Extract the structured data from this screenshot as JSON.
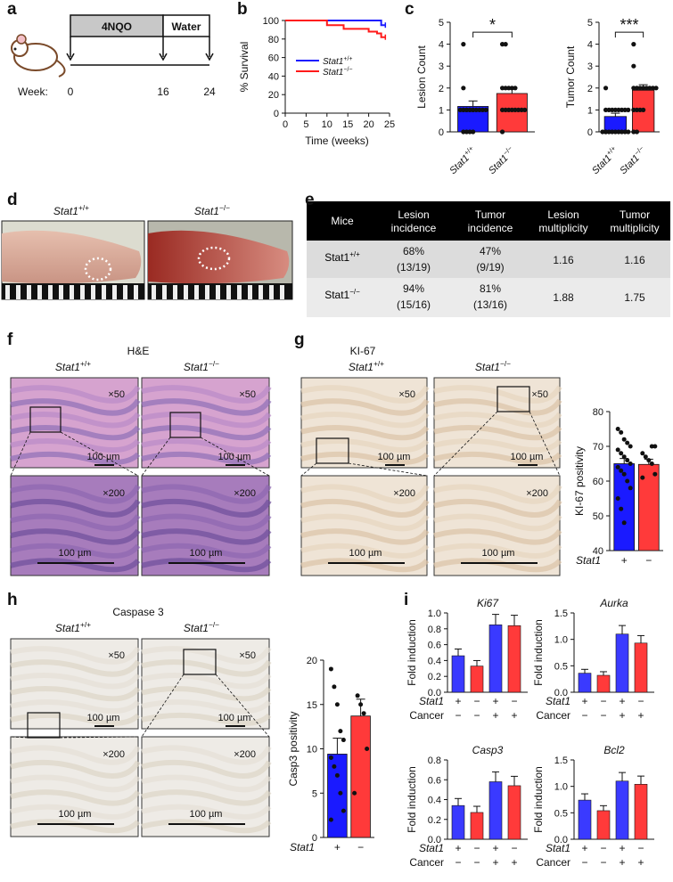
{
  "panels": {
    "a": "a",
    "b": "b",
    "c": "c",
    "d": "d",
    "e": "e",
    "f": "f",
    "g": "g",
    "h": "h",
    "i": "i"
  },
  "panel_a": {
    "treat1": "4NQO",
    "treat2": "Water",
    "week_label": "Week:",
    "weeks": [
      "0",
      "16",
      "24"
    ]
  },
  "panel_b": {
    "chart_data": {
      "type": "line",
      "xlabel": "Time (weeks)",
      "ylabel": "% Survival",
      "xlim": [
        0,
        25
      ],
      "ylim": [
        0,
        100
      ],
      "xticks": [
        "0",
        "5",
        "10",
        "15",
        "20",
        "25"
      ],
      "yticks": [
        "0",
        "20",
        "40",
        "60",
        "80",
        "100"
      ],
      "series": [
        {
          "name": "Stat1+/+",
          "color": "#1a1aff",
          "x": [
            0,
            23,
            23,
            24
          ],
          "y": [
            100,
            100,
            95,
            95
          ]
        },
        {
          "name": "Stat1−/−",
          "color": "#ff1a1a",
          "x": [
            0,
            10,
            10,
            14,
            14,
            20,
            20,
            22,
            22,
            23,
            23,
            24
          ],
          "y": [
            100,
            100,
            95,
            95,
            91,
            91,
            88,
            88,
            86,
            86,
            82,
            82
          ]
        }
      ]
    },
    "legend": [
      {
        "base": "Stat1",
        "sup": "+/+"
      },
      {
        "base": "Stat1",
        "sup": "−/−"
      }
    ]
  },
  "panel_c": {
    "chart_data": [
      {
        "type": "bar",
        "ylabel": "Lesion Count",
        "ylim": [
          0,
          5
        ],
        "yticks": [
          "0",
          "1",
          "2",
          "3",
          "4",
          "5"
        ],
        "categories": [
          "Stat1+/+",
          "Stat1−/−"
        ],
        "values": [
          1.16,
          1.75
        ],
        "sig": "*"
      },
      {
        "type": "bar",
        "ylabel": "Tumor Count",
        "ylim": [
          0,
          5
        ],
        "yticks": [
          "0",
          "1",
          "2",
          "3",
          "4",
          "5"
        ],
        "categories": [
          "Stat1+/+",
          "Stat1−/−"
        ],
        "values": [
          0.7,
          1.9
        ],
        "sig": "***"
      }
    ],
    "cat_labels": [
      {
        "base": "Stat1",
        "sup": "+/+"
      },
      {
        "base": "Stat1",
        "sup": "−/−"
      }
    ]
  },
  "panel_d": {
    "left": {
      "base": "Stat1",
      "sup": "+/+"
    },
    "right": {
      "base": "Stat1",
      "sup": "−/−"
    }
  },
  "panel_e": {
    "headers": [
      "Mice",
      "Lesion\nincidence",
      "Tumor\nincidence",
      "Lesion\nmultiplicity",
      "Tumor\nmultiplicity"
    ],
    "rows": [
      {
        "mice": "Stat1",
        "sup": "+/+",
        "lesion": "68%",
        "lesion_n": "(13/19)",
        "tumor": "47%",
        "tumor_n": "(9/19)",
        "lm": "1.16",
        "tm": "1.16"
      },
      {
        "mice": "Stat1",
        "sup": "−/−",
        "lesion": "94%",
        "lesion_n": "(15/16)",
        "tumor": "81%",
        "tumor_n": "(13/16)",
        "lm": "1.88",
        "tm": "1.75"
      }
    ]
  },
  "panel_f": {
    "title": "H&E",
    "mag_low": "×50",
    "mag_high": "×200",
    "scale": "100 µm"
  },
  "panel_g": {
    "title": "KI-67",
    "chart_data": {
      "type": "bar",
      "ylabel": "KI-67 positivity",
      "ylim": [
        40,
        80
      ],
      "yticks": [
        "40",
        "50",
        "60",
        "70",
        "80"
      ],
      "categories": [
        "+",
        "−"
      ],
      "values": [
        65,
        64.8
      ],
      "xlabel": "Stat1"
    }
  },
  "panel_h": {
    "title": "Caspase 3",
    "chart_data": {
      "type": "bar",
      "ylabel": "Casp3 positivity",
      "ylim": [
        0,
        20
      ],
      "yticks": [
        "0",
        "5",
        "10",
        "15",
        "20"
      ],
      "categories": [
        "+",
        "−"
      ],
      "values": [
        9.4,
        13.7
      ],
      "xlabel": "Stat1"
    }
  },
  "panel_i": {
    "row_labels": [
      "Stat1",
      "Cancer"
    ],
    "stat1": [
      "+",
      "−",
      "+",
      "−"
    ],
    "cancer": [
      "−",
      "−",
      "+",
      "+"
    ],
    "ylabel": "Fold induction",
    "chart_data": [
      {
        "type": "bar",
        "title": "Ki67",
        "ylim": [
          0,
          1.0
        ],
        "yticks": [
          "0.0",
          "0.2",
          "0.4",
          "0.6",
          "0.8",
          "1.0"
        ],
        "values": [
          0.46,
          0.33,
          0.85,
          0.84
        ],
        "colors": [
          "#3a3aff",
          "#ff3a3a",
          "#3a3aff",
          "#ff3a3a"
        ]
      },
      {
        "type": "bar",
        "title": "Aurka",
        "ylim": [
          0,
          1.5
        ],
        "yticks": [
          "0.0",
          "0.5",
          "1.0",
          "1.5"
        ],
        "values": [
          0.36,
          0.32,
          1.1,
          0.93
        ],
        "colors": [
          "#3a3aff",
          "#ff3a3a",
          "#3a3aff",
          "#ff3a3a"
        ]
      },
      {
        "type": "bar",
        "title": "Casp3",
        "ylim": [
          0,
          0.8
        ],
        "yticks": [
          "0.0",
          "0.2",
          "0.4",
          "0.6",
          "0.8"
        ],
        "values": [
          0.34,
          0.27,
          0.58,
          0.54
        ],
        "colors": [
          "#3a3aff",
          "#ff3a3a",
          "#3a3aff",
          "#ff3a3a"
        ]
      },
      {
        "type": "bar",
        "title": "Bcl2",
        "ylim": [
          0,
          1.5
        ],
        "yticks": [
          "0.0",
          "0.5",
          "1.0",
          "1.5"
        ],
        "values": [
          0.74,
          0.54,
          1.1,
          1.04
        ],
        "colors": [
          "#3a3aff",
          "#ff3a3a",
          "#3a3aff",
          "#ff3a3a"
        ]
      }
    ]
  }
}
